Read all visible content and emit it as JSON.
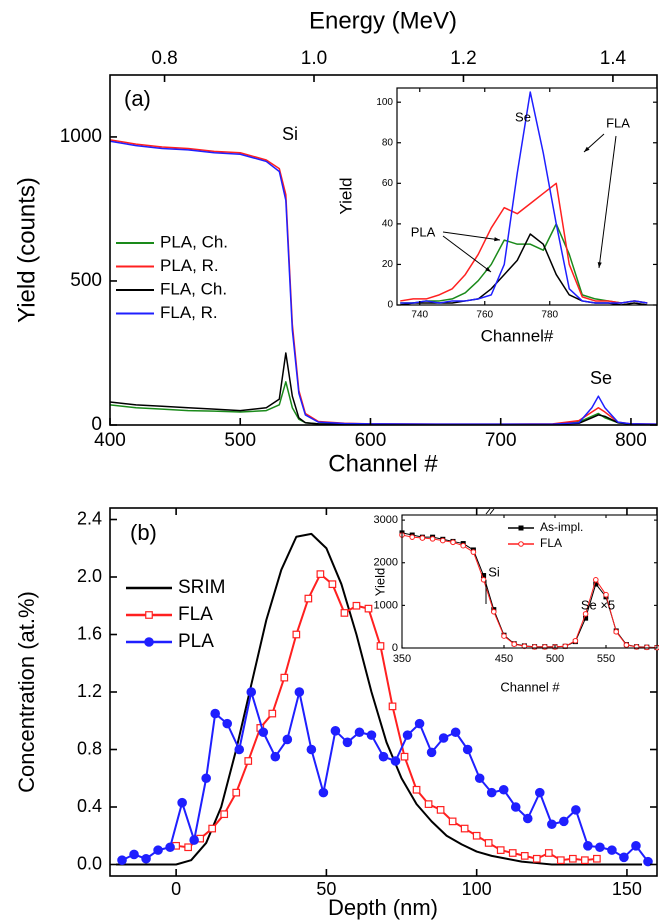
{
  "chart_data": [
    {
      "type": "line",
      "xlabel": "Channel #",
      "ylabel": "Yield (counts)",
      "x2label": "Energy (MeV)",
      "annotations": [
        "(a)",
        "Si",
        "Se"
      ],
      "x": [
        400,
        420,
        440,
        460,
        480,
        500,
        520,
        530,
        535,
        540,
        545,
        550,
        560,
        580,
        600,
        650,
        700,
        740,
        760,
        770,
        775,
        780,
        790,
        800,
        820
      ],
      "series": [
        {
          "name": "PLA, Ch.",
          "color": "#1a8a1a",
          "values": [
            70,
            60,
            55,
            50,
            48,
            45,
            50,
            70,
            150,
            60,
            20,
            8,
            4,
            3,
            2,
            2,
            2,
            3,
            10,
            30,
            40,
            25,
            8,
            3,
            2
          ]
        },
        {
          "name": "PLA, R.",
          "color": "#ff2020",
          "values": [
            990,
            975,
            965,
            960,
            950,
            945,
            920,
            890,
            800,
            350,
            120,
            40,
            12,
            6,
            4,
            3,
            3,
            4,
            15,
            45,
            60,
            45,
            10,
            4,
            3
          ]
        },
        {
          "name": "FLA, Ch.",
          "color": "#000000",
          "values": [
            80,
            70,
            65,
            60,
            55,
            50,
            60,
            90,
            250,
            100,
            25,
            8,
            4,
            3,
            2,
            2,
            2,
            2,
            6,
            25,
            35,
            30,
            8,
            3,
            2
          ]
        },
        {
          "name": "FLA, R.",
          "color": "#1f1fff",
          "values": [
            985,
            970,
            960,
            955,
            945,
            940,
            915,
            880,
            780,
            330,
            110,
            35,
            10,
            5,
            4,
            3,
            3,
            3,
            8,
            60,
            100,
            60,
            10,
            4,
            3
          ]
        }
      ],
      "xlim": [
        400,
        820
      ],
      "xticks": [
        400,
        500,
        600,
        700,
        800
      ],
      "ylim": [
        0,
        1215
      ],
      "yticks": [
        0,
        500,
        1000
      ],
      "x2lim": [
        0.727,
        1.459
      ],
      "x2ticks": [
        0.8,
        {
          "value": 1,
          "label": "1.0"
        },
        1.2,
        1.4
      ]
    },
    {
      "type": "line",
      "xlabel": "Channel#",
      "ylabel": "Yield",
      "annotations": [
        "Se",
        "FLA",
        "PLA"
      ],
      "x": [
        734,
        738,
        742,
        746,
        750,
        754,
        758,
        762,
        766,
        770,
        774,
        778,
        782,
        786,
        790,
        794,
        798,
        802,
        806,
        810
      ],
      "series": [
        {
          "color": "#1a8a1a",
          "values": [
            1,
            1,
            2,
            2,
            3,
            6,
            12,
            20,
            32,
            30,
            30,
            27,
            40,
            25,
            5,
            3,
            2,
            1,
            2,
            1
          ]
        },
        {
          "color": "#ff2020",
          "values": [
            2,
            3,
            3,
            5,
            8,
            15,
            25,
            38,
            48,
            45,
            50,
            55,
            60,
            20,
            4,
            2,
            2,
            1,
            2,
            1
          ]
        },
        {
          "color": "#000000",
          "values": [
            0,
            1,
            1,
            1,
            1,
            2,
            3,
            8,
            15,
            22,
            35,
            30,
            15,
            5,
            2,
            1,
            1,
            0,
            1,
            0
          ]
        },
        {
          "color": "#1f1fff",
          "values": [
            1,
            1,
            2,
            1,
            2,
            2,
            3,
            5,
            20,
            65,
            105,
            75,
            40,
            8,
            2,
            1,
            1,
            1,
            2,
            1
          ]
        }
      ],
      "xlim": [
        733,
        813
      ],
      "xticks": [
        740,
        760,
        780
      ],
      "ylim": [
        0,
        107
      ],
      "yticks": [
        0,
        20,
        40,
        60,
        80,
        100
      ]
    },
    {
      "type": "line",
      "xlabel": "Depth (nm)",
      "ylabel": "Concentration (at.%)",
      "annotations": [
        "(b)"
      ],
      "series": [
        {
          "name": "SRIM",
          "color": "#000000",
          "x": [
            -20,
            -15,
            -10,
            -5,
            0,
            5,
            10,
            15,
            20,
            25,
            30,
            35,
            40,
            45,
            50,
            55,
            60,
            65,
            70,
            75,
            80,
            85,
            90,
            95,
            100,
            105,
            110,
            115,
            120,
            125,
            130,
            135,
            140,
            145,
            150,
            155
          ],
          "values": [
            0,
            0,
            0,
            0,
            0,
            0.03,
            0.15,
            0.4,
            0.8,
            1.25,
            1.7,
            2.05,
            2.28,
            2.3,
            2.2,
            1.95,
            1.6,
            1.2,
            0.85,
            0.6,
            0.42,
            0.3,
            0.2,
            0.14,
            0.09,
            0.06,
            0.04,
            0.02,
            0.01,
            0,
            0,
            0,
            0,
            0,
            0,
            0
          ]
        },
        {
          "name": "FLA",
          "color": "#ff2020",
          "marker": "open-square",
          "x": [
            0,
            4,
            8,
            12,
            16,
            20,
            24,
            28,
            32,
            36,
            40,
            44,
            48,
            52,
            56,
            60,
            64,
            68,
            72,
            76,
            80,
            84,
            88,
            92,
            96,
            100,
            104,
            108,
            112,
            116,
            120,
            124,
            128,
            132,
            136,
            140
          ],
          "values": [
            0.13,
            0.12,
            0.18,
            0.25,
            0.35,
            0.5,
            0.72,
            0.95,
            1.05,
            1.3,
            1.6,
            1.85,
            2.02,
            1.95,
            1.75,
            1.8,
            1.78,
            1.52,
            1.1,
            0.75,
            0.52,
            0.42,
            0.38,
            0.3,
            0.25,
            0.2,
            0.15,
            0.1,
            0.08,
            0.06,
            0.04,
            0.08,
            0.03,
            0.04,
            0.03,
            0.04
          ]
        },
        {
          "name": "PLA",
          "color": "#1f1fff",
          "marker": "filled-circle",
          "x": [
            -18,
            -14,
            -10,
            -6,
            -2,
            2,
            6,
            10,
            13,
            17,
            21,
            25,
            29,
            33,
            37,
            41,
            45,
            49,
            53,
            57,
            61,
            65,
            69,
            73,
            77,
            81,
            85,
            89,
            93,
            97,
            101,
            105,
            109,
            113,
            117,
            121,
            125,
            129,
            133,
            137,
            141,
            145,
            149,
            153,
            157
          ],
          "values": [
            0.03,
            0.07,
            0.04,
            0.1,
            0.12,
            0.43,
            0.17,
            0.6,
            1.05,
            0.98,
            0.8,
            1.2,
            0.92,
            0.75,
            0.87,
            1.2,
            0.8,
            0.5,
            0.93,
            0.85,
            0.92,
            0.9,
            0.75,
            0.72,
            0.9,
            0.98,
            0.78,
            0.88,
            0.92,
            0.8,
            0.6,
            0.5,
            0.52,
            0.4,
            0.32,
            0.5,
            0.28,
            0.3,
            0.38,
            0.13,
            0.12,
            0.1,
            0.05,
            0.13,
            0.02
          ]
        }
      ],
      "xlim": [
        -22,
        160
      ],
      "xticks": [
        0,
        50,
        100,
        150
      ],
      "ylim": [
        -0.08,
        2.48
      ],
      "yticks": [
        {
          "value": 0,
          "label": "0.0"
        },
        0.4,
        0.8,
        1.2,
        1.6,
        {
          "value": 2,
          "label": "2.0"
        },
        2.4
      ]
    },
    {
      "type": "line",
      "xlabel": "Channel #",
      "ylabel": "Yield",
      "annotations": [
        "Si",
        "Se ×5"
      ],
      "x": [
        350,
        360,
        370,
        380,
        390,
        400,
        410,
        420,
        430,
        440,
        450,
        460,
        470,
        480,
        490,
        500,
        510,
        520,
        530,
        540,
        550,
        560,
        570,
        580,
        590,
        600
      ],
      "series": [
        {
          "name": "As-impl.",
          "color": "#000000",
          "marker": "filled-square",
          "values": [
            2700,
            2650,
            2600,
            2600,
            2550,
            2500,
            2450,
            2300,
            1700,
            900,
            300,
            100,
            50,
            30,
            30,
            30,
            40,
            150,
            700,
            1500,
            1200,
            400,
            80,
            30,
            20,
            10
          ]
        },
        {
          "name": "FLA",
          "color": "#ff2020",
          "marker": "open-circle",
          "values": [
            2650,
            2600,
            2580,
            2560,
            2520,
            2480,
            2400,
            2250,
            1600,
            850,
            280,
            90,
            40,
            25,
            25,
            25,
            40,
            170,
            800,
            1600,
            1250,
            380,
            70,
            25,
            15,
            10
          ]
        }
      ],
      "xlim": [
        350,
        600
      ],
      "xticks": [
        350,
        450,
        500,
        550
      ],
      "ylim": [
        0,
        3120
      ],
      "yticks": [
        0,
        1000,
        2000,
        3000
      ]
    }
  ]
}
